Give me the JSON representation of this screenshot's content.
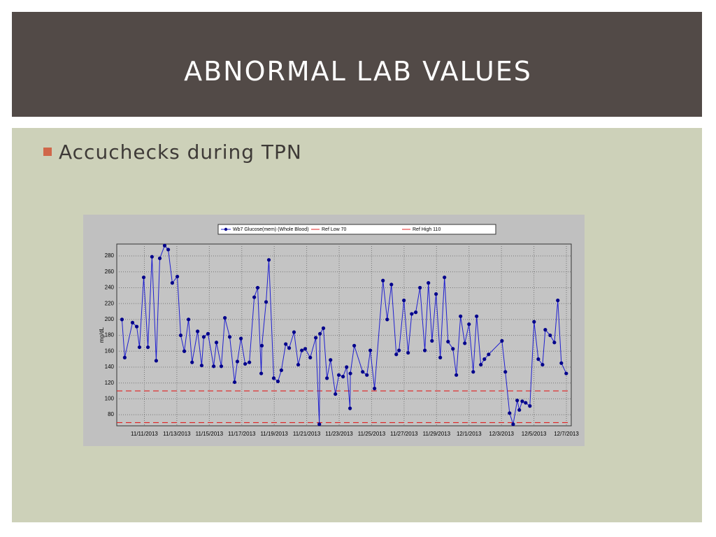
{
  "slide": {
    "title": "ABNORMAL LAB VALUES",
    "bullet": "Accuchecks during TPN"
  },
  "chart_data": {
    "type": "line",
    "y_label": "mg/dL",
    "x": [
      9.62,
      9.79,
      10.27,
      10.53,
      10.7,
      10.96,
      11.22,
      11.47,
      11.73,
      11.95,
      12.25,
      12.47,
      12.72,
      13.03,
      13.24,
      13.46,
      13.72,
      13.94,
      14.28,
      14.53,
      14.66,
      14.92,
      15.27,
      15.44,
      15.74,
      15.96,
      16.26,
      16.56,
      16.73,
      16.95,
      17.21,
      17.47,
      17.77,
      17.98,
      18.2,
      18.24,
      18.5,
      18.67,
      18.97,
      19.23,
      19.44,
      19.71,
      19.92,
      20.22,
      20.48,
      20.7,
      20.91,
      21.22,
      21.56,
      21.78,
      21.82,
      22.03,
      22.25,
      22.47,
      22.77,
      22.98,
      23.24,
      23.46,
      23.67,
      23.69,
      23.93,
      24.45,
      24.71,
      24.92,
      25.18,
      25.7,
      25.96,
      26.22,
      26.52,
      26.69,
      26.99,
      27.25,
      27.47,
      27.72,
      27.98,
      28.28,
      28.5,
      28.72,
      28.97,
      29.23,
      29.49,
      29.71,
      30.01,
      30.22,
      30.48,
      30.74,
      31.0,
      31.26,
      31.47,
      31.73,
      31.95,
      32.21,
      33.03,
      33.24,
      33.5,
      33.72,
      33.97,
      34.1,
      34.28,
      34.49,
      34.75,
      35.01,
      35.27,
      35.53,
      35.7,
      36.0,
      36.26,
      36.47,
      36.69,
      36.99
    ],
    "series": [
      {
        "name": "Wb7 Glucose(mem) (Whole Blood)",
        "color": "#1f1fd0",
        "marker_color": "#00008b",
        "values": [
          200,
          152,
          196,
          191,
          165,
          253,
          165,
          279,
          148,
          277,
          293,
          288,
          246,
          254,
          180,
          160,
          200,
          146,
          185,
          142,
          178,
          182,
          141,
          171,
          141,
          202,
          178,
          121,
          147,
          176,
          144,
          146,
          228,
          240,
          132,
          167,
          222,
          275,
          126,
          122,
          136,
          169,
          164,
          184,
          143,
          161,
          163,
          152,
          177,
          68,
          182,
          189,
          126,
          149,
          106,
          130,
          128,
          140,
          88,
          132,
          167,
          134,
          130,
          161,
          113,
          249,
          200,
          244,
          156,
          161,
          224,
          158,
          207,
          209,
          240,
          161,
          246,
          173,
          232,
          152,
          253,
          172,
          163,
          130,
          204,
          170,
          194,
          134,
          204,
          143,
          150,
          156,
          173,
          134,
          82,
          68,
          98,
          86,
          97,
          95,
          91,
          197,
          150,
          143,
          187,
          180,
          171,
          224,
          145,
          132
        ]
      }
    ],
    "ref_lines": [
      {
        "name": "Ref Low 70",
        "value": 70,
        "color": "#e02020"
      },
      {
        "name": "Ref High 110",
        "value": 110,
        "color": "#e02020"
      }
    ],
    "xlim": [
      9.3,
      37.3
    ],
    "xticks": [
      {
        "value": 11,
        "label": "11/11/2013"
      },
      {
        "value": 13,
        "label": "11/13/2013"
      },
      {
        "value": 15,
        "label": "11/15/2013"
      },
      {
        "value": 17,
        "label": "11/17/2013"
      },
      {
        "value": 19,
        "label": "11/19/2013"
      },
      {
        "value": 21,
        "label": "11/21/2013"
      },
      {
        "value": 23,
        "label": "11/23/2013"
      },
      {
        "value": 25,
        "label": "11/25/2013"
      },
      {
        "value": 27,
        "label": "11/27/2013"
      },
      {
        "value": 29,
        "label": "11/29/2013"
      },
      {
        "value": 31,
        "label": "12/1/2013"
      },
      {
        "value": 33,
        "label": "12/3/2013"
      },
      {
        "value": 35,
        "label": "12/5/2013"
      },
      {
        "value": 37,
        "label": "12/7/2013"
      }
    ],
    "ylim": [
      66,
      295
    ],
    "yticks": [
      80,
      100,
      120,
      140,
      160,
      180,
      200,
      220,
      240,
      260,
      280
    ],
    "grid": true
  }
}
